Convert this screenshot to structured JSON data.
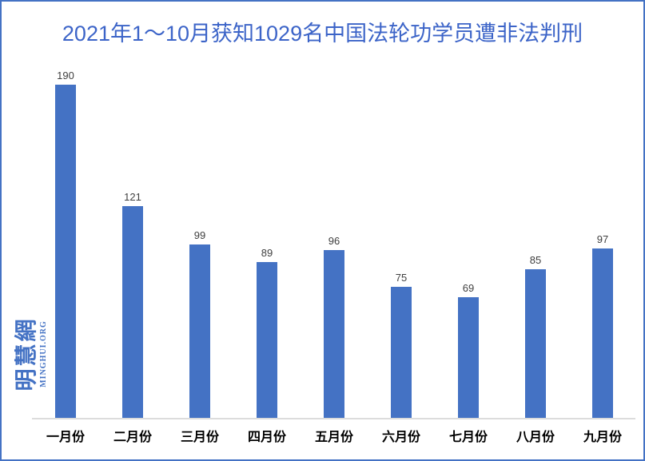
{
  "frame": {
    "border_color": "#4472C4",
    "background_color": "#FFFFFF"
  },
  "watermark": {
    "cn": "明慧網",
    "en": "MINGHUI.ORG",
    "color": "#4472C4"
  },
  "chart_data": {
    "type": "bar",
    "title": "2021年1～10月获知1029名中国法轮功学员遭非法判刑",
    "title_color": "#3C64C8",
    "categories": [
      "一月份",
      "二月份",
      "三月份",
      "四月份",
      "五月份",
      "六月份",
      "七月份",
      "八月份",
      "九月份"
    ],
    "values": [
      190,
      121,
      99,
      89,
      96,
      75,
      69,
      85,
      97
    ],
    "bar_color": "#4472C4",
    "value_label_color": "#404040",
    "axis_line_color": "#DCDCDC",
    "xlabel": "",
    "ylabel": "",
    "ylim": [
      0,
      200
    ],
    "grid": false,
    "legend": "none",
    "value_labels_shown": true
  }
}
